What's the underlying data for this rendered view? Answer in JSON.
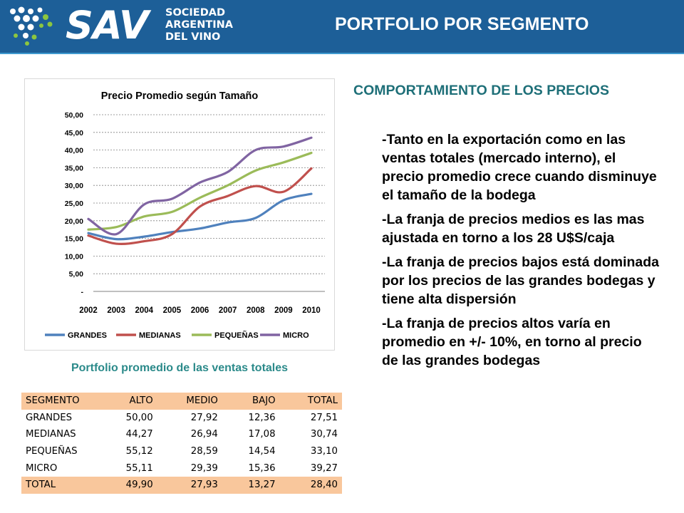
{
  "header": {
    "brand": "SAV",
    "org_lines": [
      "SOCIEDAD",
      "ARGENTINA",
      "DEL VINO"
    ],
    "title": "PORTFOLIO POR SEGMENTO",
    "bg_color": "#1d5f98"
  },
  "chart_data": {
    "type": "line",
    "title": "Precio Promedio según Tamaño",
    "categories": [
      "2002",
      "2003",
      "2004",
      "2005",
      "2006",
      "2007",
      "2008",
      "2009",
      "2010"
    ],
    "ytick_labels": [
      "-",
      "5,00",
      "10,00",
      "15,00",
      "20,00",
      "25,00",
      "30,00",
      "35,00",
      "40,00",
      "45,00",
      "50,00"
    ],
    "ylim": [
      0,
      50
    ],
    "grid": true,
    "legend_position": "bottom",
    "series": [
      {
        "name": "GRANDES",
        "color": "#4f81bd",
        "values": [
          16.5,
          14.8,
          15.5,
          16.8,
          17.8,
          19.5,
          20.8,
          25.8,
          27.6
        ]
      },
      {
        "name": "MEDIANAS",
        "color": "#c0504d",
        "values": [
          15.8,
          13.5,
          14.2,
          16.2,
          24.0,
          27.0,
          29.8,
          28.2,
          34.8
        ]
      },
      {
        "name": "PEQUEÑAS",
        "color": "#9bbb59",
        "values": [
          17.5,
          18.2,
          21.2,
          22.5,
          26.5,
          30.0,
          34.2,
          36.5,
          39.2
        ]
      },
      {
        "name": "MICRO",
        "color": "#8064a2",
        "values": [
          20.5,
          16.2,
          24.6,
          26.2,
          30.8,
          33.8,
          40.0,
          41.0,
          43.5
        ]
      }
    ]
  },
  "caption": "Portfolio promedio de las ventas totales",
  "table": {
    "headers": [
      "SEGMENTO",
      "ALTO",
      "MEDIO",
      "BAJO",
      "TOTAL"
    ],
    "rows": [
      [
        "GRANDES",
        "50,00",
        "27,92",
        "12,36",
        "27,51"
      ],
      [
        "MEDIANAS",
        "44,27",
        "26,94",
        "17,08",
        "30,74"
      ],
      [
        "PEQUEÑAS",
        "55,12",
        "28,59",
        "14,54",
        "33,10"
      ],
      [
        "MICRO",
        "55,11",
        "29,39",
        "15,36",
        "39,27"
      ]
    ],
    "total": [
      "TOTAL",
      "49,90",
      "27,93",
      "13,27",
      "28,40"
    ],
    "highlight_color": "#f9c79c"
  },
  "subtitle": "COMPORTAMIENTO DE LOS PRECIOS",
  "bullets": [
    "-Tanto en la exportación como en las ventas totales (mercado interno), el precio promedio crece cuando disminuye el tamaño de la bodega",
    "-La franja de precios medios es las mas ajustada en torno a los 28 U$S/caja",
    "-La franja de precios bajos está dominada por los precios de las grandes bodegas y tiene alta dispersión",
    "-La franja de precios altos varía en promedio en +/- 10%, en torno al precio de las grandes bodegas"
  ]
}
